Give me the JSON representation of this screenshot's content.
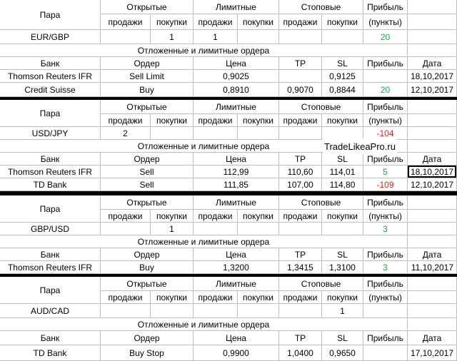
{
  "colors": {
    "positive": "#1aa84a",
    "negative": "#e21a1a",
    "border": "#bfbfbf",
    "gap": "#000000"
  },
  "labels": {
    "pair": "Пара",
    "open": "Открытые",
    "limit": "Лимитные",
    "stop": "Стоповые",
    "profit": "Прибыль",
    "sell": "продажи",
    "buy": "покупки",
    "points": "(пункты)",
    "pending": "Отложенные и лимитные ордера",
    "bank": "Банк",
    "order": "Ордер",
    "price": "Цена",
    "tp": "TP",
    "sl": "SL",
    "date": "Дата"
  },
  "watermark": "TradeLikeaPro.ru",
  "blocks": [
    {
      "pair": "EUR/GBP",
      "open_sell": "",
      "open_buy": "1",
      "limit_sell": "1",
      "limit_buy": "",
      "stop_sell": "",
      "stop_buy": "",
      "profit": "20",
      "profit_sign": "pos",
      "orders": [
        {
          "bank": "Thomson Reuters IFR",
          "order": "Sell Limit",
          "price": "0,9025",
          "tp": "",
          "sl": "0,9125",
          "profit": "",
          "profit_sign": "",
          "date": "18,10,2017"
        },
        {
          "bank": "Credit Suisse",
          "order": "Buy",
          "price": "0,8910",
          "tp": "0,9070",
          "sl": "0,8844",
          "profit": "20",
          "profit_sign": "pos",
          "date": "12,10,2017"
        }
      ]
    },
    {
      "pair": "USD/JPY",
      "open_sell": "2",
      "open_buy": "",
      "limit_sell": "",
      "limit_buy": "",
      "stop_sell": "",
      "stop_buy": "",
      "profit": "-104",
      "profit_sign": "neg",
      "orders": [
        {
          "bank": "Thomson Reuters IFR",
          "order": "Sell",
          "price": "112,99",
          "tp": "110,60",
          "sl": "114,01",
          "profit": "5",
          "profit_sign": "pos",
          "date": "18,10,2017"
        },
        {
          "bank": "TD Bank",
          "order": "Sell",
          "price": "111,85",
          "tp": "107,00",
          "sl": "114,80",
          "profit": "-109",
          "profit_sign": "neg",
          "date": "12,10,2017"
        }
      ]
    },
    {
      "pair": "GBP/USD",
      "open_sell": "",
      "open_buy": "1",
      "limit_sell": "",
      "limit_buy": "",
      "stop_sell": "",
      "stop_buy": "",
      "profit": "3",
      "profit_sign": "pos",
      "orders": [
        {
          "bank": "Thomson Reuters IFR",
          "order": "Buy",
          "price": "1,3200",
          "tp": "1,3415",
          "sl": "1,3100",
          "profit": "3",
          "profit_sign": "pos",
          "date": "11,10,2017"
        }
      ]
    },
    {
      "pair": "AUD/CAD",
      "open_sell": "",
      "open_buy": "",
      "limit_sell": "",
      "limit_buy": "",
      "stop_sell": "",
      "stop_buy": "1",
      "profit": "",
      "profit_sign": "",
      "orders": [
        {
          "bank": "TD Bank",
          "order": "Buy Stop",
          "price": "0,9900",
          "tp": "1,0400",
          "sl": "0,9650",
          "profit": "",
          "profit_sign": "",
          "date": "17,10,2017"
        }
      ]
    }
  ]
}
